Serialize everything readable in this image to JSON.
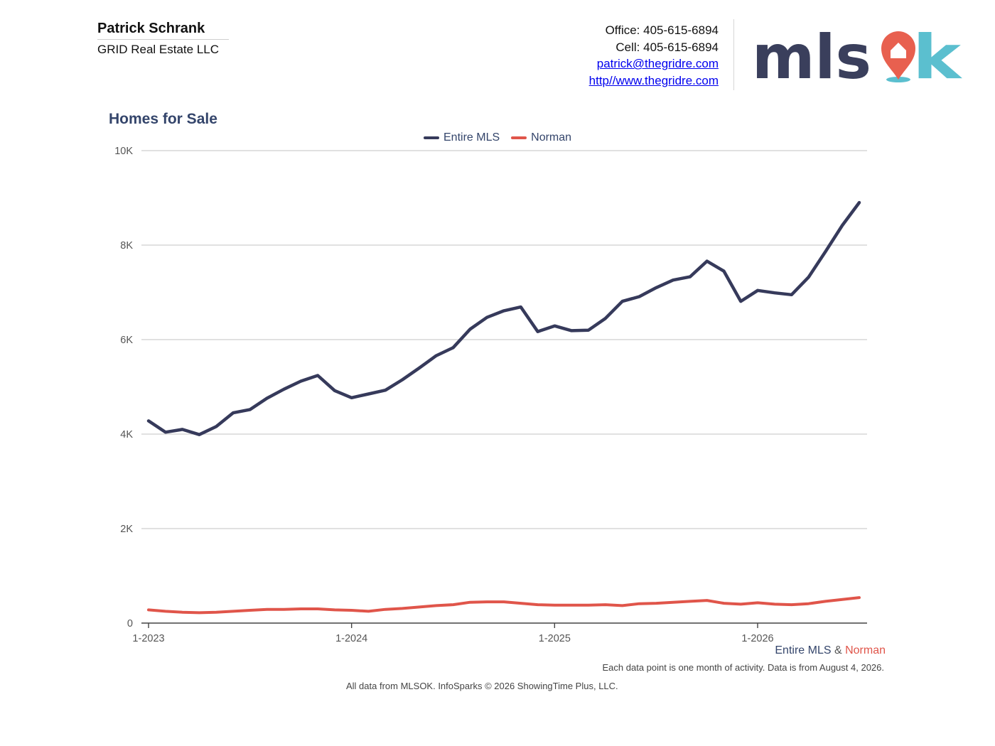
{
  "agent": {
    "name": "Patrick Schrank",
    "company": "GRID Real Estate LLC"
  },
  "contact": {
    "office": "Office: 405-615-6894",
    "cell": "Cell: 405-615-6894",
    "email": "patrick@thegridre.com",
    "website": "http//www.thegridre.com"
  },
  "logo": {
    "text": "mlsok",
    "dark_color": "#3a3f5c",
    "pin_color": "#e8604f",
    "accent_color": "#5bbfcf"
  },
  "chart_data": {
    "type": "line",
    "title": "Homes for Sale",
    "x_start": "1-2023",
    "x_tick_labels": [
      "1-2023",
      "1-2024",
      "1-2025",
      "1-2026"
    ],
    "y_tick_labels": [
      "0",
      "2K",
      "4K",
      "6K",
      "8K",
      "10K"
    ],
    "ylim": [
      0,
      10000
    ],
    "grid": true,
    "legend_position": "top-center",
    "series": [
      {
        "name": "Entire MLS",
        "color": "#363a5b",
        "values": [
          4280,
          4040,
          4100,
          3990,
          4160,
          4450,
          4520,
          4760,
          4950,
          5120,
          5240,
          4920,
          4770,
          4850,
          4930,
          5150,
          5400,
          5660,
          5830,
          6220,
          6470,
          6610,
          6690,
          6170,
          6290,
          6190,
          6200,
          6450,
          6810,
          6910,
          7100,
          7260,
          7330,
          7660,
          7450,
          6810,
          7040,
          6990,
          6950,
          7320,
          7860,
          8420,
          8900
        ]
      },
      {
        "name": "Norman",
        "color": "#e0554a",
        "values": [
          280,
          250,
          230,
          220,
          230,
          250,
          270,
          290,
          290,
          300,
          300,
          280,
          270,
          250,
          290,
          310,
          340,
          370,
          390,
          440,
          450,
          450,
          420,
          390,
          380,
          380,
          380,
          390,
          370,
          410,
          420,
          440,
          460,
          480,
          420,
          400,
          430,
          400,
          390,
          410,
          460,
          500,
          540
        ]
      }
    ]
  },
  "footer": {
    "series_a": "Entire MLS",
    "amp": "&",
    "series_b": "Norman",
    "note": "Each data point is one month of activity. Data is from August 4, 2026.",
    "source": "All data from MLSOK. InfoSparks © 2026 ShowingTime Plus, LLC."
  }
}
